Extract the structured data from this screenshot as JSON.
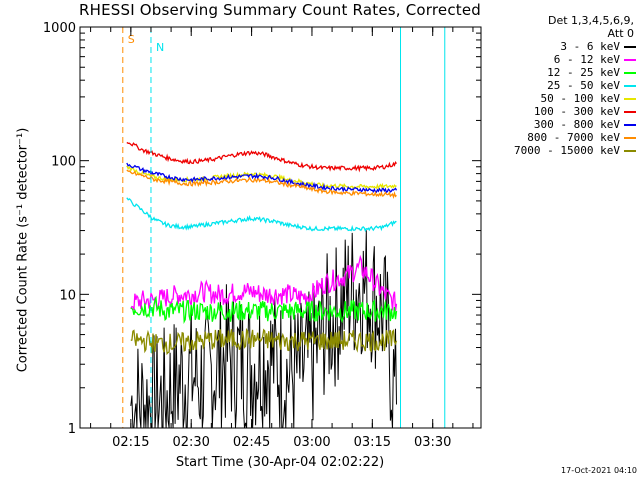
{
  "chart_data": {
    "type": "line",
    "title": "RHESSI Observing Summary Count Rates, Corrected",
    "xlabel": "Start Time (30-Apr-04 02:02:22)",
    "ylabel": "Corrected Count Rate (s⁻¹ detector⁻¹)",
    "yscale": "log",
    "ylim": [
      1,
      1000
    ],
    "xlim": [
      "02:02:22",
      "03:42:00"
    ],
    "y_ticks": [
      "1",
      "10",
      "100",
      "1000"
    ],
    "x_ticks": [
      "02:15",
      "02:30",
      "02:45",
      "03:00",
      "03:15",
      "03:30"
    ],
    "detector_label": "Det 1,3,4,5,6,9,",
    "attenuator_label": "Att 0",
    "markers": [
      {
        "label": "S",
        "time": "02:13",
        "color": "#ff8c00",
        "style": "dashed"
      },
      {
        "label": "N",
        "time": "02:20",
        "color": "#00e5ee",
        "style": "dashed"
      }
    ],
    "data_gaps": [
      {
        "start": "03:22",
        "end": "03:33",
        "color": "#00e5ee"
      }
    ],
    "series": [
      {
        "name": "3 - 6 keV",
        "color": "#000000",
        "x": [
          "02:15",
          "02:18",
          "02:21",
          "02:24",
          "02:27",
          "02:30",
          "02:33",
          "02:36",
          "02:39",
          "02:42",
          "02:45",
          "02:48",
          "02:51",
          "02:54",
          "02:57",
          "03:00",
          "03:03",
          "03:06",
          "03:09",
          "03:12",
          "03:15",
          "03:18",
          "03:21"
        ],
        "y": [
          1.5,
          1.5,
          1.5,
          1.7,
          2.3,
          2.5,
          2.2,
          2.8,
          3.5,
          3.3,
          3.0,
          3.5,
          3.2,
          2.5,
          2.6,
          3.2,
          5.5,
          7.0,
          10,
          12,
          10,
          7,
          1.5
        ]
      },
      {
        "name": "6 - 12 keV",
        "color": "#ff00ff",
        "x": [
          "02:15",
          "02:18",
          "02:21",
          "02:24",
          "02:27",
          "02:30",
          "02:33",
          "02:36",
          "02:39",
          "02:42",
          "02:45",
          "02:48",
          "02:51",
          "02:54",
          "02:57",
          "03:00",
          "03:03",
          "03:06",
          "03:09",
          "03:12",
          "03:15",
          "03:18",
          "03:21"
        ],
        "y": [
          8.5,
          9.0,
          9.0,
          9.5,
          10,
          10,
          10.5,
          10,
          10,
          10.5,
          10.5,
          10,
          10,
          10,
          9.5,
          10,
          12,
          13,
          14,
          16,
          13,
          10,
          8.5
        ]
      },
      {
        "name": "12 - 25 keV",
        "color": "#00ff00",
        "x": [
          "02:15",
          "02:18",
          "02:21",
          "02:24",
          "02:27",
          "02:30",
          "02:33",
          "02:36",
          "02:39",
          "02:42",
          "02:45",
          "02:48",
          "02:51",
          "02:54",
          "02:57",
          "03:00",
          "03:03",
          "03:06",
          "03:09",
          "03:12",
          "03:15",
          "03:18",
          "03:21"
        ],
        "y": [
          8,
          8,
          8,
          7.5,
          7.5,
          7.5,
          7.5,
          7.5,
          7.5,
          7.5,
          7.5,
          7.5,
          7.5,
          7.5,
          7.5,
          7.5,
          7.5,
          7.5,
          7.5,
          7.5,
          7.5,
          7.5,
          7.5
        ]
      },
      {
        "name": "25 - 50 keV",
        "color": "#00e5ee",
        "x": [
          "02:14",
          "02:18",
          "02:21",
          "02:24",
          "02:27",
          "02:30",
          "02:33",
          "02:36",
          "02:39",
          "02:42",
          "02:45",
          "02:48",
          "02:51",
          "02:54",
          "02:57",
          "03:00",
          "03:03",
          "03:06",
          "03:09",
          "03:12",
          "03:15",
          "03:18",
          "03:21"
        ],
        "y": [
          52,
          42,
          36,
          33,
          32,
          32,
          33,
          34,
          35,
          36,
          37,
          36,
          35,
          33,
          32,
          31,
          31,
          31,
          31,
          31,
          31,
          32,
          35
        ]
      },
      {
        "name": "50 - 100 keV",
        "color": "#e6e600",
        "x": [
          "02:14",
          "02:18",
          "02:21",
          "02:24",
          "02:27",
          "02:30",
          "02:33",
          "02:36",
          "02:39",
          "02:42",
          "02:45",
          "02:48",
          "02:51",
          "02:54",
          "02:57",
          "03:00",
          "03:03",
          "03:06",
          "03:09",
          "03:12",
          "03:15",
          "03:18",
          "03:21"
        ],
        "y": [
          90,
          80,
          75,
          73,
          72,
          72,
          73,
          75,
          77,
          78,
          80,
          78,
          76,
          72,
          70,
          67,
          65,
          65,
          64,
          64,
          64,
          64,
          65
        ]
      },
      {
        "name": "100 - 300 keV",
        "color": "#ee0000",
        "x": [
          "02:14",
          "02:18",
          "02:21",
          "02:24",
          "02:27",
          "02:30",
          "02:33",
          "02:36",
          "02:39",
          "02:42",
          "02:45",
          "02:48",
          "02:51",
          "02:54",
          "02:57",
          "03:00",
          "03:03",
          "03:06",
          "03:09",
          "03:12",
          "03:15",
          "03:18",
          "03:21"
        ],
        "y": [
          140,
          120,
          112,
          105,
          100,
          98,
          100,
          103,
          108,
          112,
          115,
          112,
          105,
          98,
          93,
          90,
          88,
          88,
          88,
          88,
          88,
          90,
          95
        ]
      },
      {
        "name": "300 - 800 keV",
        "color": "#0000ee",
        "x": [
          "02:14",
          "02:18",
          "02:21",
          "02:24",
          "02:27",
          "02:30",
          "02:33",
          "02:36",
          "02:39",
          "02:42",
          "02:45",
          "02:48",
          "02:51",
          "02:54",
          "02:57",
          "03:00",
          "03:03",
          "03:06",
          "03:09",
          "03:12",
          "03:15",
          "03:18",
          "03:21"
        ],
        "y": [
          95,
          85,
          80,
          76,
          73,
          72,
          73,
          74,
          75,
          76,
          77,
          76,
          74,
          70,
          67,
          65,
          63,
          62,
          61,
          61,
          60,
          60,
          60
        ]
      },
      {
        "name": "800 - 7000 keV",
        "color": "#ff8c00",
        "x": [
          "02:14",
          "02:18",
          "02:21",
          "02:24",
          "02:27",
          "02:30",
          "02:33",
          "02:36",
          "02:39",
          "02:42",
          "02:45",
          "02:48",
          "02:51",
          "02:54",
          "02:57",
          "03:00",
          "03:03",
          "03:06",
          "03:09",
          "03:12",
          "03:15",
          "03:18",
          "03:21"
        ],
        "y": [
          83,
          77,
          72,
          70,
          68,
          67,
          68,
          69,
          70,
          71,
          72,
          71,
          69,
          66,
          64,
          61,
          59,
          58,
          57,
          57,
          56,
          56,
          55
        ]
      },
      {
        "name": "7000 - 15000 keV",
        "color": "#8b8b00",
        "x": [
          "02:15",
          "02:18",
          "02:21",
          "02:24",
          "02:27",
          "02:30",
          "02:33",
          "02:36",
          "02:39",
          "02:42",
          "02:45",
          "02:48",
          "02:51",
          "02:54",
          "02:57",
          "03:00",
          "03:03",
          "03:06",
          "03:09",
          "03:12",
          "03:15",
          "03:18",
          "03:21"
        ],
        "y": [
          4.5,
          4.5,
          4.3,
          4.3,
          4.3,
          4.4,
          4.5,
          4.6,
          4.6,
          4.6,
          4.6,
          4.6,
          4.5,
          4.5,
          4.5,
          4.5,
          4.5,
          4.5,
          4.5,
          4.5,
          4.5,
          4.5,
          4.5
        ]
      }
    ]
  },
  "footer": {
    "timestamp": "17-Oct-2021 04:10"
  }
}
